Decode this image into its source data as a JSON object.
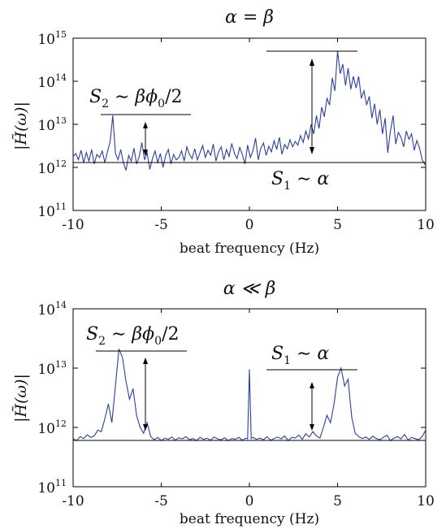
{
  "chart_data": [
    {
      "type": "line",
      "title": "α = β",
      "xlabel": "beat frequency (Hz)",
      "ylabel": "|H̃(ω)|",
      "xlim": [
        -10,
        10
      ],
      "ylim": [
        100000000000.0,
        1000000000000000.0
      ],
      "yscale": "log",
      "xticks": [
        -10,
        -5,
        0,
        5,
        10
      ],
      "xtick_labels": [
        "-10",
        "-5",
        "0",
        "5",
        "10"
      ],
      "yticks": [
        100000000000.0,
        1000000000000.0,
        10000000000000.0,
        100000000000000.0,
        1000000000000000.0
      ],
      "ytick_labels": [
        {
          "base": "10",
          "exp": "11"
        },
        {
          "base": "10",
          "exp": "12"
        },
        {
          "base": "10",
          "exp": "13"
        },
        {
          "base": "10",
          "exp": "14"
        },
        {
          "base": "10",
          "exp": "15"
        }
      ],
      "baseline": 1500000000000.0,
      "series": [
        {
          "x": [
            -10,
            -9.85,
            -9.7,
            -9.55,
            -9.4,
            -9.25,
            -9.1,
            -8.95,
            -8.8,
            -8.65,
            -8.5,
            -8.35,
            -8.2,
            -8.05,
            -7.9,
            -7.75,
            -7.6,
            -7.45,
            -7.3,
            -7.15,
            -7.0,
            -6.85,
            -6.7,
            -6.55,
            -6.4,
            -6.25,
            -6.1,
            -5.95,
            -5.8,
            -5.65,
            -5.5,
            -5.35,
            -5.2,
            -5.05,
            -4.9,
            -4.75,
            -4.6,
            -4.45,
            -4.3,
            -4.15,
            -4.0,
            -3.85,
            -3.7,
            -3.55,
            -3.4,
            -3.25,
            -3.1,
            -2.95,
            -2.8,
            -2.65,
            -2.5,
            -2.35,
            -2.2,
            -2.05,
            -1.9,
            -1.75,
            -1.6,
            -1.45,
            -1.3,
            -1.15,
            -1.0,
            -0.85,
            -0.7,
            -0.55,
            -0.4,
            -0.25,
            -0.1,
            0.05,
            0.2,
            0.35,
            0.5,
            0.65,
            0.8,
            0.95,
            1.1,
            1.25,
            1.4,
            1.55,
            1.7,
            1.85,
            2.0,
            2.15,
            2.3,
            2.45,
            2.6,
            2.75,
            2.9,
            3.05,
            3.2,
            3.35,
            3.5,
            3.65,
            3.8,
            3.95,
            4.1,
            4.25,
            4.4,
            4.55,
            4.7,
            4.85,
            5.0,
            5.15,
            5.3,
            5.45,
            5.6,
            5.75,
            5.9,
            6.05,
            6.2,
            6.35,
            6.5,
            6.65,
            6.8,
            6.95,
            7.1,
            7.25,
            7.4,
            7.55,
            7.7,
            7.85,
            8.0,
            8.15,
            8.3,
            8.45,
            8.6,
            8.75,
            8.9,
            9.05,
            9.2,
            9.35,
            9.5,
            9.65,
            9.8,
            10.0
          ],
          "values": [
            1800000000000.0,
            2100000000000.0,
            1500000000000.0,
            2500000000000.0,
            1300000000000.0,
            2200000000000.0,
            1400000000000.0,
            2600000000000.0,
            1200000000000.0,
            2000000000000.0,
            1700000000000.0,
            2400000000000.0,
            1300000000000.0,
            2300000000000.0,
            4000000000000.0,
            16000000000000.0,
            2100000000000.0,
            1500000000000.0,
            2600000000000.0,
            1300000000000.0,
            850000000000.0,
            1900000000000.0,
            1400000000000.0,
            2800000000000.0,
            1200000000000.0,
            1800000000000.0,
            3800000000000.0,
            1500000000000.0,
            2200000000000.0,
            900000000000.0,
            1600000000000.0,
            2400000000000.0,
            1300000000000.0,
            2100000000000.0,
            1000000000000.0,
            1900000000000.0,
            2600000000000.0,
            1200000000000.0,
            2000000000000.0,
            1500000000000.0,
            1700000000000.0,
            2400000000000.0,
            1400000000000.0,
            3000000000000.0,
            2000000000000.0,
            1600000000000.0,
            2700000000000.0,
            1500000000000.0,
            2200000000000.0,
            3200000000000.0,
            1700000000000.0,
            2500000000000.0,
            1900000000000.0,
            3500000000000.0,
            1400000000000.0,
            2300000000000.0,
            3000000000000.0,
            1500000000000.0,
            2600000000000.0,
            1800000000000.0,
            3600000000000.0,
            2100000000000.0,
            1600000000000.0,
            2900000000000.0,
            2000000000000.0,
            1200000000000.0,
            3300000000000.0,
            1700000000000.0,
            2400000000000.0,
            4800000000000.0,
            1500000000000.0,
            2800000000000.0,
            3700000000000.0,
            1900000000000.0,
            3100000000000.0,
            2300000000000.0,
            4200000000000.0,
            2600000000000.0,
            5000000000000.0,
            2000000000000.0,
            3400000000000.0,
            2700000000000.0,
            4400000000000.0,
            3000000000000.0,
            4000000000000.0,
            3300000000000.0,
            5500000000000.0,
            3800000000000.0,
            7000000000000.0,
            4600000000000.0,
            10000000000000.0,
            6000000000000.0,
            16000000000000.0,
            8000000000000.0,
            25000000000000.0,
            15000000000000.0,
            40000000000000.0,
            28000000000000.0,
            120000000000000.0,
            60000000000000.0,
            500000000000000.0,
            150000000000000.0,
            250000000000000.0,
            80000000000000.0,
            200000000000000.0,
            65000000000000.0,
            130000000000000.0,
            70000000000000.0,
            130000000000000.0,
            40000000000000.0,
            60000000000000.0,
            28000000000000.0,
            45000000000000.0,
            14000000000000.0,
            30000000000000.0,
            10000000000000.0,
            22000000000000.0,
            6000000000000.0,
            14000000000000.0,
            2200000000000.0,
            7000000000000.0,
            16000000000000.0,
            3500000000000.0,
            6500000000000.0,
            5000000000000.0,
            3000000000000.0,
            7000000000000.0,
            4500000000000.0,
            6000000000000.0,
            2500000000000.0,
            4200000000000.0,
            2800000000000.0,
            1500000000000.0,
            1100000000000.0
          ]
        }
      ],
      "annotations": [
        {
          "id": "s2",
          "text_main": "S",
          "text_sub": "2",
          "text_rest": " ∼ βϕ",
          "text_sub2": "0",
          "text_tail": "/2"
        },
        {
          "id": "s1",
          "text_main": "S",
          "text_sub": "1",
          "text_rest": " ∼ α"
        }
      ]
    },
    {
      "type": "line",
      "title": "α ≪ β",
      "xlabel": "beat frequency (Hz)",
      "ylabel": "|H̃(ω)|",
      "xlim": [
        -10,
        10
      ],
      "ylim": [
        100000000000.0,
        100000000000000.0
      ],
      "yscale": "log",
      "xticks": [
        -10,
        -5,
        0,
        5,
        10
      ],
      "xtick_labels": [
        "-10",
        "-5",
        "0",
        "5",
        "10"
      ],
      "yticks": [
        100000000000.0,
        1000000000000.0,
        10000000000000.0,
        100000000000000.0
      ],
      "ytick_labels": [
        {
          "base": "10",
          "exp": "11"
        },
        {
          "base": "10",
          "exp": "12"
        },
        {
          "base": "10",
          "exp": "13"
        },
        {
          "base": "10",
          "exp": "14"
        }
      ],
      "baseline": 650000000000.0,
      "series": [
        {
          "x": [
            -10,
            -9.8,
            -9.6,
            -9.4,
            -9.2,
            -9.0,
            -8.8,
            -8.6,
            -8.4,
            -8.2,
            -8.0,
            -7.8,
            -7.6,
            -7.4,
            -7.2,
            -7.0,
            -6.8,
            -6.6,
            -6.4,
            -6.2,
            -6.0,
            -5.8,
            -5.6,
            -5.4,
            -5.2,
            -5.0,
            -4.8,
            -4.6,
            -4.4,
            -4.2,
            -4.0,
            -3.8,
            -3.6,
            -3.4,
            -3.2,
            -3.0,
            -2.8,
            -2.6,
            -2.4,
            -2.2,
            -2.0,
            -1.8,
            -1.6,
            -1.4,
            -1.2,
            -1.0,
            -0.8,
            -0.6,
            -0.4,
            -0.2,
            -0.1,
            0.0,
            0.1,
            0.2,
            0.4,
            0.6,
            0.8,
            1.0,
            1.2,
            1.4,
            1.6,
            1.8,
            2.0,
            2.2,
            2.4,
            2.6,
            2.8,
            3.0,
            3.2,
            3.4,
            3.6,
            3.8,
            4.0,
            4.2,
            4.4,
            4.6,
            4.8,
            5.0,
            5.2,
            5.4,
            5.6,
            5.8,
            6.0,
            6.2,
            6.4,
            6.6,
            6.8,
            7.0,
            7.2,
            7.4,
            7.6,
            7.8,
            8.0,
            8.2,
            8.4,
            8.6,
            8.8,
            9.0,
            9.2,
            9.4,
            9.6,
            9.8,
            10.0
          ],
          "values": [
            650000000000.0,
            600000000000.0,
            700000000000.0,
            650000000000.0,
            750000000000.0,
            680000000000.0,
            720000000000.0,
            900000000000.0,
            850000000000.0,
            1400000000000.0,
            2500000000000.0,
            1200000000000.0,
            5000000000000.0,
            21000000000000.0,
            15000000000000.0,
            6000000000000.0,
            3000000000000.0,
            4500000000000.0,
            1600000000000.0,
            1000000000000.0,
            800000000000.0,
            1200000000000.0,
            700000000000.0,
            620000000000.0,
            680000000000.0,
            600000000000.0,
            660000000000.0,
            630000000000.0,
            690000000000.0,
            610000000000.0,
            670000000000.0,
            640000000000.0,
            700000000000.0,
            620000000000.0,
            650000000000.0,
            600000000000.0,
            680000000000.0,
            630000000000.0,
            660000000000.0,
            610000000000.0,
            690000000000.0,
            640000000000.0,
            620000000000.0,
            670000000000.0,
            600000000000.0,
            650000000000.0,
            630000000000.0,
            680000000000.0,
            610000000000.0,
            660000000000.0,
            640000000000.0,
            9500000000000.0,
            650000000000.0,
            680000000000.0,
            630000000000.0,
            660000000000.0,
            620000000000.0,
            700000000000.0,
            610000000000.0,
            650000000000.0,
            690000000000.0,
            640000000000.0,
            720000000000.0,
            600000000000.0,
            680000000000.0,
            660000000000.0,
            740000000000.0,
            630000000000.0,
            780000000000.0,
            690000000000.0,
            850000000000.0,
            720000000000.0,
            660000000000.0,
            1000000000000.0,
            1600000000000.0,
            1200000000000.0,
            2500000000000.0,
            7000000000000.0,
            10000000000000.0,
            5000000000000.0,
            6500000000000.0,
            1500000000000.0,
            800000000000.0,
            700000000000.0,
            650000000000.0,
            690000000000.0,
            630000000000.0,
            710000000000.0,
            650000000000.0,
            620000000000.0,
            680000000000.0,
            740000000000.0,
            600000000000.0,
            660000000000.0,
            700000000000.0,
            640000000000.0,
            760000000000.0,
            610000000000.0,
            680000000000.0,
            650000000000.0,
            620000000000.0,
            700000000000.0,
            900000000000.0
          ]
        }
      ],
      "annotations": [
        {
          "id": "s2",
          "text_main": "S",
          "text_sub": "2",
          "text_rest": " ∼ βϕ",
          "text_sub2": "0",
          "text_tail": "/2"
        },
        {
          "id": "s1",
          "text_main": "S",
          "text_sub": "1",
          "text_rest": " ∼ α"
        }
      ]
    }
  ]
}
